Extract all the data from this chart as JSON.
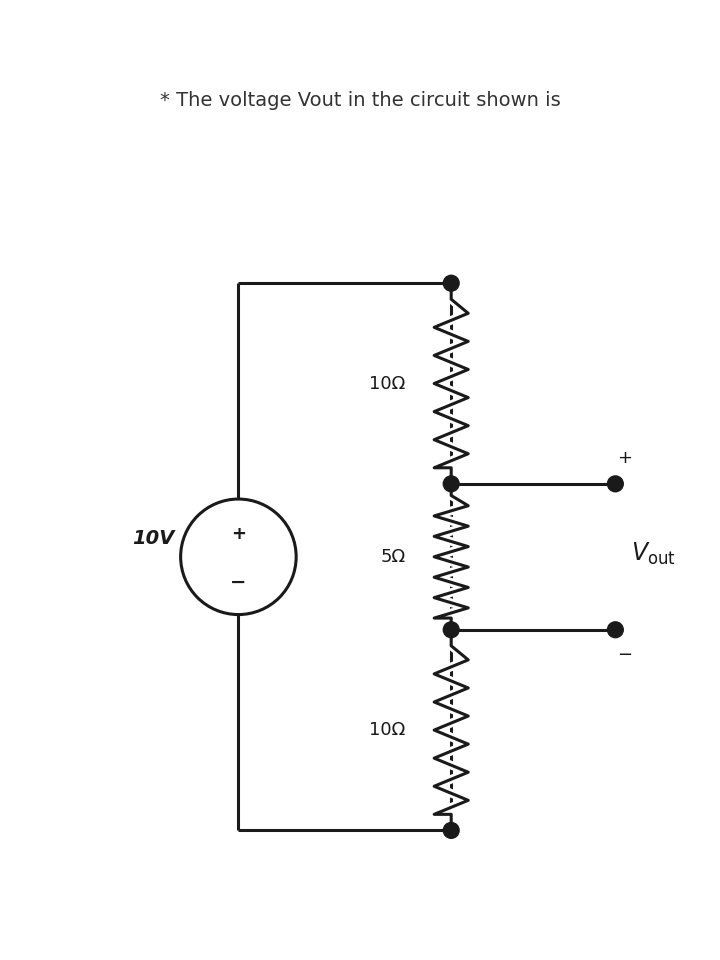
{
  "title": "* The voltage Vout in the circuit shown is",
  "title_color": "#333333",
  "header_color": "#cdd8e3",
  "teal_color": "#2a9d8f",
  "bg_color": "#ffffff",
  "line_color": "#1a1a1a",
  "line_width": 2.2,
  "dot_color": "#1a1a1a",
  "voltage_source_label": "10V",
  "resistor1_label": "10Ω",
  "resistor2_label": "5Ω",
  "resistor3_label": "10Ω"
}
